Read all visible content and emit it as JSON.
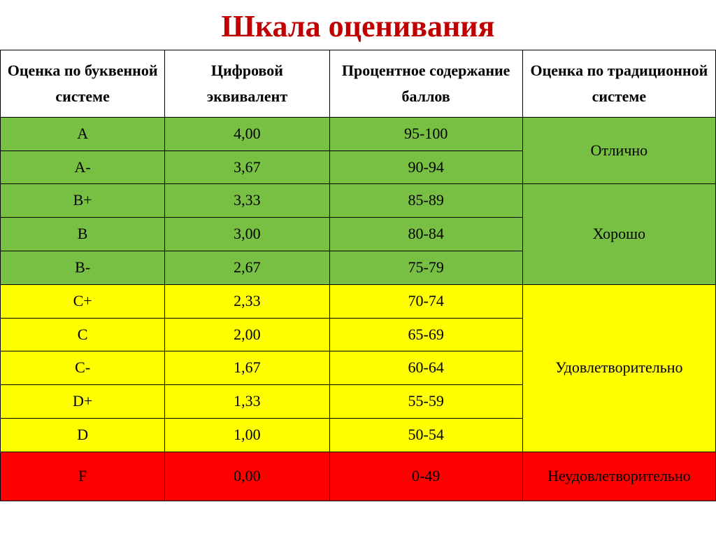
{
  "title": "Шкала оценивания",
  "title_color": "#c00000",
  "columns": {
    "letter": "Оценка по буквенной системе",
    "numeric": "Цифровой эквивалент",
    "percent": "Процентное содержание баллов",
    "traditional": "Оценка по традиционной системе"
  },
  "groups": [
    {
      "traditional": "Отлично",
      "bg": "#77c043",
      "class": "green",
      "rows": [
        {
          "letter": "A",
          "numeric": "4,00",
          "percent": "95-100"
        },
        {
          "letter": "A-",
          "numeric": "3,67",
          "percent": "90-94"
        }
      ]
    },
    {
      "traditional": "Хорошо",
      "bg": "#77c043",
      "class": "green",
      "rows": [
        {
          "letter": "B+",
          "numeric": "3,33",
          "percent": "85-89"
        },
        {
          "letter": "B",
          "numeric": "3,00",
          "percent": "80-84"
        },
        {
          "letter": "B-",
          "numeric": "2,67",
          "percent": "75-79"
        }
      ]
    },
    {
      "traditional": "Удовлетворительно",
      "bg": "#ffff00",
      "class": "yellow",
      "rows": [
        {
          "letter": "C+",
          "numeric": "2,33",
          "percent": "70-74"
        },
        {
          "letter": "C",
          "numeric": "2,00",
          "percent": "65-69"
        },
        {
          "letter": "C-",
          "numeric": "1,67",
          "percent": "60-64"
        },
        {
          "letter": "D+",
          "numeric": "1,33",
          "percent": "55-59"
        },
        {
          "letter": "D",
          "numeric": "1,00",
          "percent": "50-54"
        }
      ]
    },
    {
      "traditional": "Неудовлетворительно",
      "bg": "#ff0000",
      "class": "red",
      "tall": true,
      "rows": [
        {
          "letter": "F",
          "numeric": "0,00",
          "percent": "0-49"
        }
      ]
    }
  ],
  "style": {
    "header_fontsize": 22,
    "cell_fontsize": 22,
    "title_fontsize": 44,
    "border_color": "#000000",
    "background": "#ffffff"
  }
}
